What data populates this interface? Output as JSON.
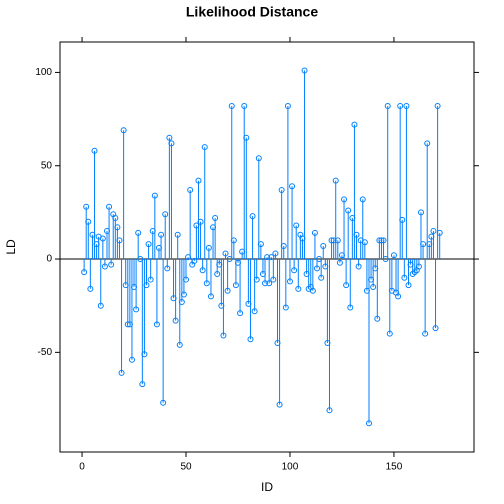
{
  "chart_data": {
    "type": "needle",
    "title": "Likelihood Distance",
    "x_label": "ID",
    "y_label": "LD",
    "x": [
      1,
      2,
      3,
      4,
      5,
      6,
      7,
      8,
      9,
      10,
      11,
      12,
      13,
      14,
      15,
      16,
      17,
      18,
      19,
      20,
      21,
      22,
      23,
      24,
      25,
      26,
      27,
      28,
      29,
      30,
      31,
      32,
      33,
      34,
      35,
      36,
      37,
      38,
      39,
      40,
      41,
      42,
      43,
      44,
      45,
      46,
      47,
      48,
      49,
      50,
      51,
      52,
      53,
      54,
      55,
      56,
      57,
      58,
      59,
      60,
      61,
      62,
      63,
      64,
      65,
      66,
      67,
      68,
      69,
      70,
      71,
      72,
      73,
      74,
      75,
      76,
      77,
      78,
      79,
      80,
      81,
      82,
      83,
      84,
      85,
      86,
      87,
      88,
      89,
      90,
      91,
      92,
      93,
      94,
      95,
      96,
      97,
      98,
      99,
      100,
      101,
      102,
      103,
      104,
      105,
      106,
      107,
      108,
      109,
      110,
      111,
      112,
      113,
      114,
      115,
      116,
      117,
      118,
      119,
      120,
      121,
      122,
      123,
      124,
      125,
      126,
      127,
      128,
      129,
      130,
      131,
      132,
      133,
      134,
      135,
      136,
      137,
      138,
      139,
      140,
      141,
      142,
      143,
      144,
      145,
      146,
      147,
      148,
      149,
      150,
      151,
      152,
      153,
      154,
      155,
      156,
      157,
      158,
      159,
      160,
      161,
      162,
      163,
      164,
      165,
      166,
      167,
      168,
      169,
      170,
      171,
      172
    ],
    "values": [
      -7,
      28,
      20,
      -16,
      13,
      58,
      8,
      12,
      -25,
      11,
      -4,
      15,
      28,
      -3,
      24,
      22,
      17,
      10,
      -61,
      69,
      -14,
      -35,
      -35,
      -54,
      -15,
      -27,
      14,
      0,
      -67,
      -51,
      -14,
      8,
      -11,
      15,
      34,
      -35,
      6,
      13,
      -77,
      24,
      -5,
      65,
      62,
      -21,
      -33,
      13,
      -46,
      -23,
      -19,
      -11,
      1,
      37,
      -3,
      -1,
      18,
      42,
      20,
      -6,
      60,
      -13,
      6,
      -20,
      17,
      22,
      -8,
      -3,
      -25,
      -41,
      3,
      -17,
      0,
      82,
      10,
      -14,
      -2,
      -29,
      4,
      82,
      65,
      -24,
      -43,
      23,
      -28,
      -11,
      54,
      8,
      -8,
      -13,
      1,
      -13,
      1,
      -11,
      3,
      -45,
      -78,
      37,
      7,
      -26,
      82,
      -12,
      39,
      -6,
      18,
      -16,
      13,
      11,
      101,
      -8,
      -16,
      -15,
      -17,
      14,
      -5,
      0,
      -10,
      7,
      -4,
      -45,
      -81,
      10,
      10,
      42,
      10,
      -2,
      2,
      32,
      -14,
      26,
      -26,
      22,
      72,
      13,
      -4,
      10,
      32,
      9,
      -17,
      -88,
      -11,
      -15,
      -5,
      -32,
      10,
      10,
      10,
      0,
      82,
      -40,
      -17,
      2,
      -18,
      -20,
      82,
      21,
      -10,
      82,
      -14,
      -3,
      -8,
      -7,
      -6,
      -4,
      25,
      8,
      -40,
      62,
      8,
      12,
      15,
      -37,
      82,
      14
    ],
    "color": "#0080ff",
    "reference_line": 0,
    "xlim": [
      -10.6,
      188.5
    ],
    "xticks": [
      0,
      50,
      100,
      150
    ],
    "ylim": [
      -103.4,
      116.3
    ],
    "yticks": [
      -50,
      0,
      50,
      100
    ]
  }
}
